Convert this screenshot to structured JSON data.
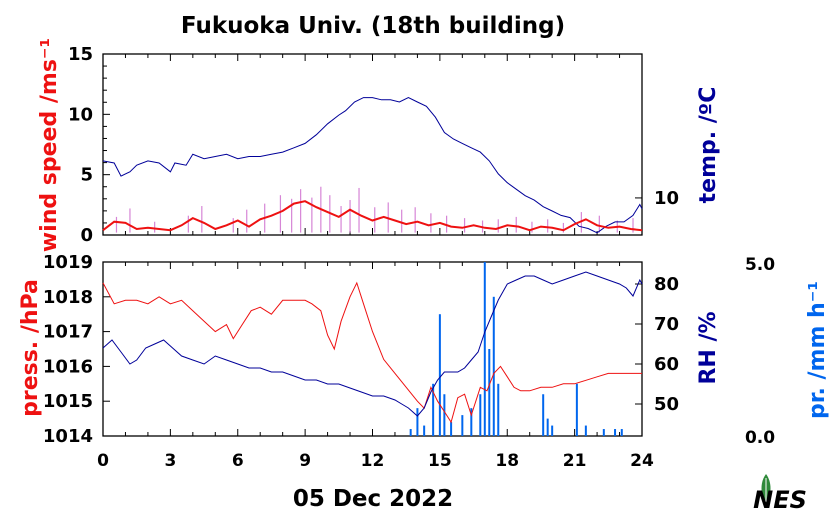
{
  "chart_data": [
    {
      "type": "line",
      "title": "Fukuoka Univ. (18th building)",
      "xlabel": "05 Dec 2022",
      "x_ticks": [
        0,
        3,
        6,
        9,
        12,
        15,
        18,
        21,
        24
      ],
      "x_range": [
        0,
        24
      ],
      "left_axis": {
        "label": "wind speed /ms⁻¹",
        "ticks": [
          0,
          5,
          10,
          15
        ],
        "range": [
          0,
          15
        ],
        "color": "#ee1111"
      },
      "right_axis": {
        "label": "temp. /ºC",
        "ticks": [
          10
        ],
        "range": [
          8.3,
          16.6
        ],
        "color": "#000099"
      },
      "temperature": {
        "x": [
          0,
          0.5,
          0.8,
          1.2,
          1.5,
          2,
          2.5,
          3,
          3.2,
          3.7,
          4,
          4.5,
          5,
          5.5,
          6,
          6.5,
          7,
          7.5,
          8,
          8.5,
          9,
          9.5,
          10,
          10.5,
          10.8,
          11.2,
          11.6,
          12,
          12.4,
          12.8,
          13.2,
          13.6,
          14,
          14.4,
          14.8,
          15.2,
          15.6,
          16,
          16.4,
          16.8,
          17.2,
          17.6,
          18,
          18.4,
          18.8,
          19.2,
          19.6,
          20,
          20.4,
          20.8,
          21.2,
          21.6,
          22,
          22.4,
          22.8,
          23.2,
          23.6,
          23.9,
          24
        ],
        "y": [
          11.7,
          11.6,
          11.0,
          11.2,
          11.5,
          11.7,
          11.6,
          11.2,
          11.6,
          11.5,
          12.0,
          11.8,
          11.9,
          12.0,
          11.8,
          11.9,
          11.9,
          12.0,
          12.1,
          12.3,
          12.5,
          12.9,
          13.4,
          13.8,
          14.0,
          14.4,
          14.6,
          14.6,
          14.5,
          14.5,
          14.4,
          14.6,
          14.4,
          14.2,
          13.7,
          13.0,
          12.7,
          12.5,
          12.3,
          12.1,
          11.7,
          11.1,
          10.7,
          10.4,
          10.1,
          9.9,
          9.6,
          9.4,
          9.2,
          9.1,
          8.7,
          8.6,
          8.4,
          8.7,
          8.9,
          8.9,
          9.2,
          9.7,
          9.5
        ]
      },
      "wind_speed_mean": {
        "x": [
          0,
          0.5,
          1,
          1.5,
          2,
          2.5,
          3,
          3.5,
          4,
          4.5,
          5,
          5.5,
          6,
          6.5,
          7,
          7.5,
          8,
          8.5,
          9,
          9.5,
          10,
          10.5,
          11,
          11.5,
          12,
          12.5,
          13,
          13.5,
          14,
          14.5,
          15,
          15.5,
          16,
          16.5,
          17,
          17.5,
          18,
          18.5,
          19,
          19.5,
          20,
          20.5,
          21,
          21.5,
          22,
          22.5,
          23,
          23.5,
          24
        ],
        "y": [
          0.4,
          1.1,
          1.0,
          0.5,
          0.6,
          0.5,
          0.4,
          0.8,
          1.4,
          1.0,
          0.5,
          0.8,
          1.2,
          0.7,
          1.3,
          1.6,
          2.0,
          2.6,
          2.8,
          2.3,
          1.9,
          1.5,
          2.1,
          1.6,
          1.2,
          1.5,
          1.2,
          0.9,
          1.1,
          0.8,
          1.0,
          0.7,
          0.6,
          0.8,
          0.6,
          0.5,
          0.8,
          0.7,
          0.4,
          0.7,
          0.6,
          0.4,
          0.9,
          1.3,
          0.8,
          0.6,
          0.7,
          0.5,
          0.4
        ]
      },
      "wind_gust": {
        "x": [
          0.6,
          1.2,
          2.3,
          3.8,
          4.4,
          5.8,
          6.4,
          7.2,
          7.9,
          8.4,
          8.8,
          9.3,
          9.7,
          10.1,
          10.6,
          11.0,
          11.4,
          12.1,
          12.7,
          13.3,
          13.9,
          14.6,
          15.3,
          16.1,
          16.9,
          17.6,
          18.4,
          19.1,
          19.8,
          20.5,
          21.3,
          22.1,
          22.9,
          23.6
        ],
        "y": [
          1.5,
          2.2,
          1.1,
          1.6,
          2.4,
          1.4,
          2.1,
          2.6,
          3.3,
          3.0,
          3.8,
          3.1,
          4.0,
          3.3,
          2.4,
          2.9,
          3.9,
          2.3,
          2.7,
          2.1,
          2.3,
          1.8,
          1.6,
          1.4,
          1.2,
          1.3,
          1.5,
          1.1,
          1.3,
          1.0,
          1.9,
          1.6,
          1.2,
          1.4
        ]
      }
    },
    {
      "type": "line",
      "x_ticks": [
        0,
        3,
        6,
        9,
        12,
        15,
        18,
        21,
        24
      ],
      "x_range": [
        0,
        24
      ],
      "left_axis": {
        "label": "press. /hPa",
        "ticks": [
          1014,
          1015,
          1016,
          1017,
          1018,
          1019
        ],
        "range": [
          1014,
          1019
        ],
        "color": "#ee1111"
      },
      "right_axis": {
        "label": "RH /%",
        "ticks": [
          50,
          60,
          70,
          80
        ],
        "range": [
          42,
          85.5
        ],
        "color": "#000099"
      },
      "far_right_axis": {
        "label": "pr. /mm h⁻¹",
        "ticks": [
          "0.0",
          "5.0"
        ],
        "range": [
          0,
          5
        ],
        "color": "#0066ee"
      },
      "pressure": {
        "x": [
          0,
          0.5,
          1,
          1.5,
          2,
          2.5,
          3,
          3.5,
          4,
          4.5,
          5,
          5.5,
          5.8,
          6.2,
          6.6,
          7,
          7.5,
          8,
          8.5,
          9,
          9.3,
          9.7,
          10,
          10.3,
          10.6,
          11,
          11.3,
          11.6,
          12,
          12.5,
          13,
          13.5,
          14,
          14.3,
          14.6,
          14.9,
          15.2,
          15.5,
          15.8,
          16.1,
          16.4,
          16.8,
          17.1,
          17.4,
          17.7,
          18,
          18.3,
          18.6,
          19,
          19.5,
          20,
          20.5,
          21,
          21.5,
          22,
          22.5,
          23,
          23.5,
          24
        ],
        "y": [
          1018.4,
          1017.8,
          1017.9,
          1017.9,
          1017.8,
          1018.0,
          1017.8,
          1017.9,
          1017.6,
          1017.3,
          1017.0,
          1017.2,
          1016.8,
          1017.2,
          1017.6,
          1017.7,
          1017.5,
          1017.9,
          1017.9,
          1017.9,
          1017.8,
          1017.6,
          1016.9,
          1016.5,
          1017.3,
          1018.0,
          1018.4,
          1017.8,
          1017.0,
          1016.2,
          1015.8,
          1015.4,
          1015.0,
          1014.8,
          1015.4,
          1015.0,
          1014.7,
          1014.4,
          1015.1,
          1015.2,
          1014.6,
          1015.4,
          1015.3,
          1015.8,
          1016.0,
          1015.7,
          1015.4,
          1015.3,
          1015.3,
          1015.4,
          1015.4,
          1015.5,
          1015.5,
          1015.6,
          1015.7,
          1015.8,
          1015.8,
          1015.8,
          1015.8
        ]
      },
      "relative_humidity": {
        "x": [
          0,
          0.4,
          0.8,
          1.2,
          1.5,
          1.9,
          2.3,
          2.7,
          3.1,
          3.5,
          4.0,
          4.5,
          5.0,
          5.5,
          6.0,
          6.5,
          7.0,
          7.5,
          8.0,
          8.5,
          9.0,
          9.5,
          10.0,
          10.5,
          11.0,
          11.5,
          12.0,
          12.5,
          13.0,
          13.3,
          13.6,
          14.0,
          14.3,
          14.6,
          14.9,
          15.2,
          15.5,
          15.8,
          16.1,
          16.4,
          16.7,
          17.0,
          17.3,
          17.6,
          18.0,
          18.4,
          18.8,
          19.2,
          19.6,
          20.0,
          20.5,
          21.0,
          21.5,
          22.0,
          22.5,
          23.0,
          23.3,
          23.6,
          23.9,
          24
        ],
        "y": [
          64,
          66,
          63,
          60,
          61,
          64,
          65,
          66,
          64,
          62,
          61,
          60,
          62,
          61,
          60,
          59,
          59,
          58,
          58,
          57,
          56,
          56,
          55,
          55,
          54,
          53,
          52,
          52,
          51,
          50,
          49,
          47,
          49,
          53,
          56,
          58,
          58,
          58,
          59,
          61,
          63,
          68,
          72,
          76,
          80,
          81,
          82,
          82,
          81,
          80,
          81,
          82,
          83,
          82,
          81,
          80,
          79,
          77,
          81,
          80
        ]
      },
      "precipitation": {
        "x": [
          13.7,
          14.0,
          14.3,
          14.7,
          15.0,
          15.2,
          15.5,
          16.0,
          16.4,
          16.8,
          17.0,
          17.2,
          17.4,
          17.6,
          19.6,
          19.8,
          20.0,
          21.1,
          21.5,
          22.3,
          22.8,
          23.1
        ],
        "y": [
          0.2,
          0.8,
          0.3,
          1.5,
          3.5,
          1.2,
          0.4,
          0.6,
          0.8,
          1.2,
          5.0,
          2.5,
          4.0,
          1.5,
          1.2,
          0.5,
          0.3,
          1.5,
          0.3,
          0.2,
          0.2,
          0.2
        ]
      }
    }
  ],
  "colors": {
    "wind": "#ee1111",
    "gust": "#cc66cc",
    "temp": "#000099",
    "pressure": "#ee1111",
    "rh": "#000099",
    "precip": "#0066ee",
    "logo_green": "#2f8a3a"
  },
  "logo": {
    "text": "NES",
    "icon": "leaf-logo-icon"
  }
}
